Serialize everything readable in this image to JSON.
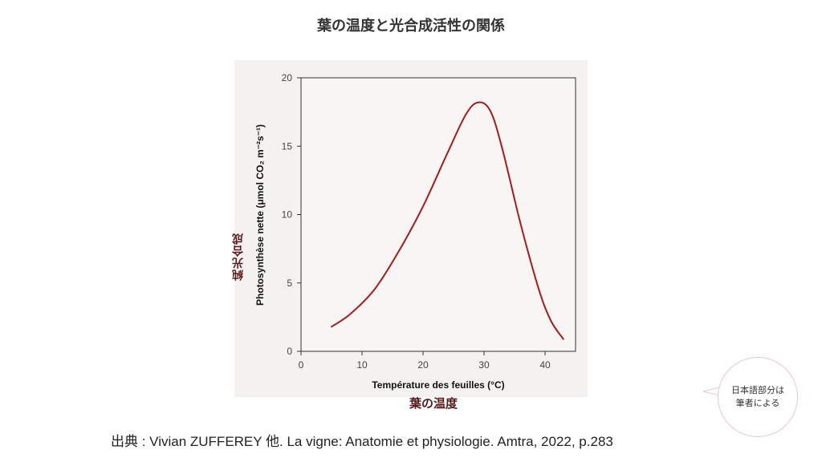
{
  "slide": {
    "title": "葉の温度と光合成活性の関係",
    "jp_ylabel": "純光合成",
    "jp_xlabel": "葉の温度",
    "note_line1": "日本語部分は",
    "note_line2": "筆者による",
    "citation": "出典 : Vivian ZUFFEREY 他. La vigne: Anatomie et physiologie. Amtra, 2022, p.283"
  },
  "chart_data": {
    "type": "line",
    "xlabel": "Température des feuilles (°C)",
    "ylabel": "Photosynthèse nette (μmol CO₂ m⁻²s⁻¹)",
    "xlim": [
      0,
      45
    ],
    "ylim": [
      0,
      20
    ],
    "xticks": [
      0,
      10,
      20,
      30,
      40
    ],
    "yticks": [
      0,
      5,
      10,
      15,
      20
    ],
    "series": [
      {
        "color": "#a61b1b",
        "x": [
          5,
          8,
          12,
          16,
          20,
          24,
          27,
          29,
          31,
          33,
          36,
          39,
          41,
          43
        ],
        "y": [
          1.8,
          2.7,
          4.5,
          7.3,
          10.6,
          14.5,
          17.3,
          18.2,
          17.6,
          14.8,
          9.3,
          4.5,
          2.2,
          0.9
        ]
      }
    ]
  }
}
